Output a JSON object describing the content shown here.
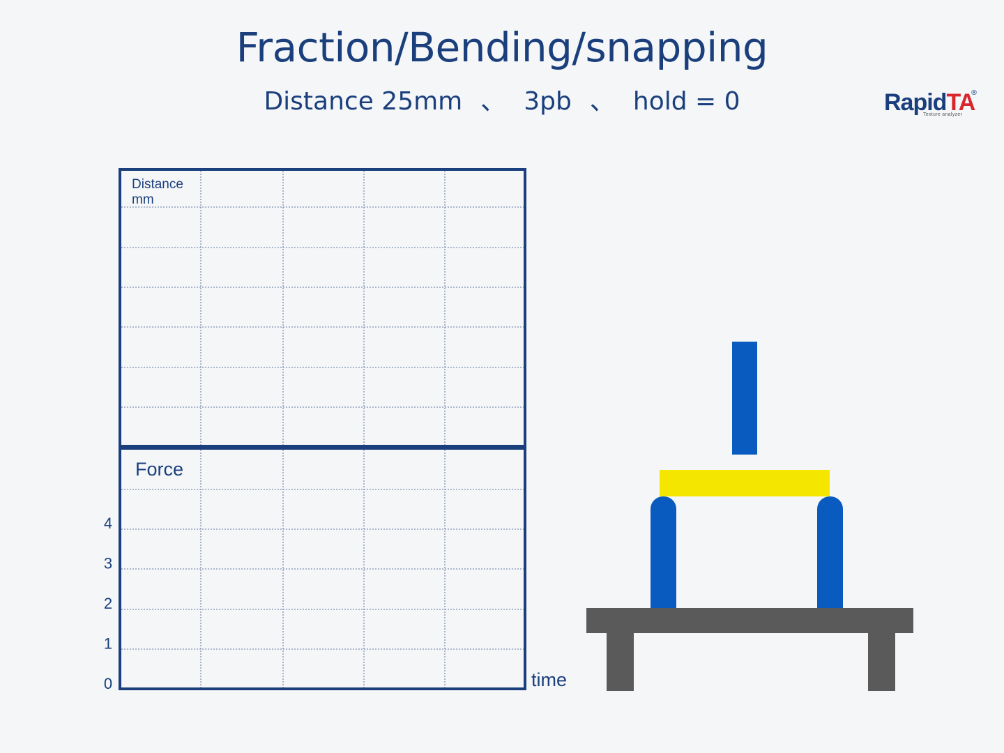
{
  "header": {
    "title": "Fraction/Bending/snapping",
    "subtitle_parts": [
      "Distance 25mm",
      "3pb",
      "hold = 0"
    ],
    "separator": "、"
  },
  "logo": {
    "brand": "Rapid",
    "brand_accent": "TA",
    "registered": "®",
    "tagline": "Texture analyzer"
  },
  "chart_data": [
    {
      "type": "line",
      "title": "",
      "ylabel_lines": [
        "Distance",
        "mm"
      ],
      "xlabel": "",
      "series": [],
      "grid": true
    },
    {
      "type": "line",
      "title": "",
      "ylabel": "Force",
      "xlabel": "time",
      "yticks": [
        "0",
        "1",
        "2",
        "3",
        "4"
      ],
      "ylim": [
        0,
        6
      ],
      "series": [],
      "grid": true
    }
  ],
  "apparatus": {
    "colors": {
      "probe": "#0a5bbf",
      "sample": "#f5e600",
      "supports": "#0a5bbf",
      "base": "#5a5a5a",
      "frame": "#1a3f7c",
      "grid": "#7d8fb3"
    }
  }
}
